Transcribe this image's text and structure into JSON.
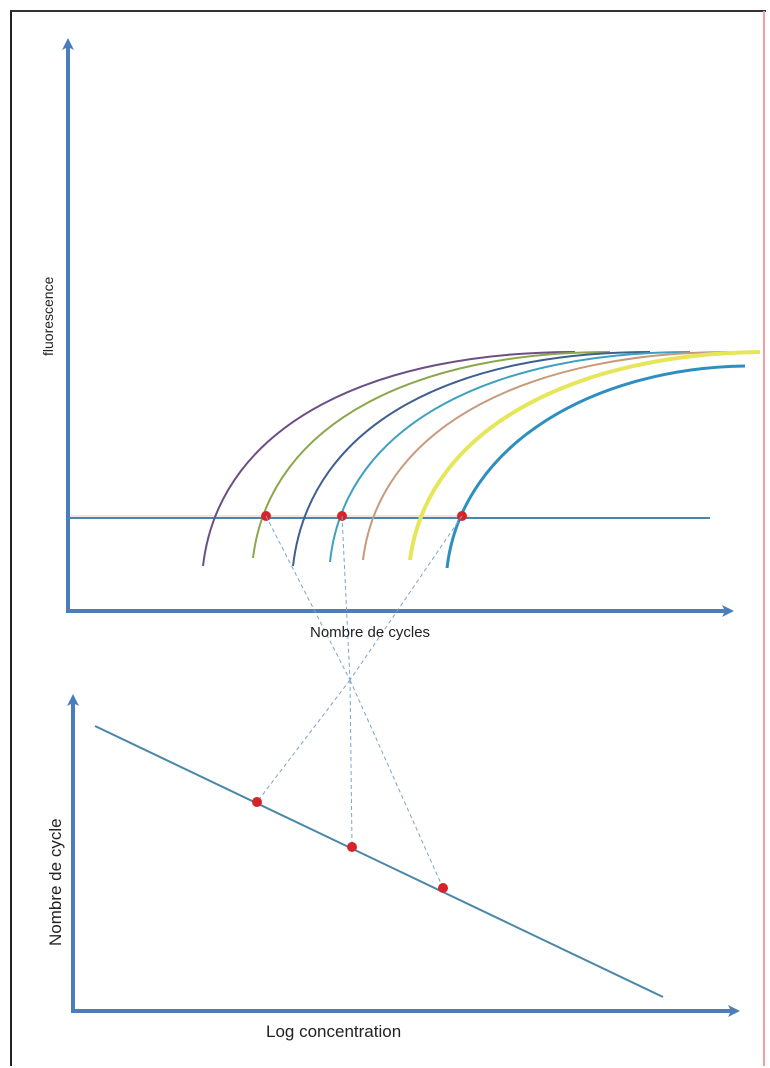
{
  "colors": {
    "axis": "#4a7ebb",
    "threshold": "#4a86a8",
    "threshold_top": "#e8a0a0",
    "point": "#d6252a",
    "guide": "#7aa6c9",
    "frame_top": "#333333",
    "frame_right": "#f0a0a0",
    "frame_left": "#222222",
    "curves": [
      "#6b4f86",
      "#8aa84a",
      "#3f5f8f",
      "#3fa0c0",
      "#c89a7a",
      "#e6e65a",
      "#2d8fbf"
    ]
  },
  "upper_chart": {
    "xlabel": "Nombre de cycles",
    "ylabel": "fluorescence",
    "curve_count": 7,
    "threshold_line": true
  },
  "lower_chart": {
    "xlabel": "Log concentration",
    "ylabel": "Nombre de cycle",
    "regression_line": true
  },
  "chart_data": [
    {
      "type": "line",
      "title": "",
      "xlabel": "Nombre de cycles",
      "ylabel": "fluorescence",
      "series": [
        {
          "values": "sigmoid amplification curve 1"
        },
        {
          "values": "sigmoid amplification curve 2"
        },
        {
          "values": "sigmoid amplification curve 3"
        },
        {
          "values": "sigmoid amplification curve 4"
        },
        {
          "values": "sigmoid amplification curve 5"
        },
        {
          "values": "sigmoid amplification curve 6"
        },
        {
          "values": "sigmoid amplification curve 7"
        }
      ],
      "threshold_crossings": 3
    },
    {
      "type": "scatter",
      "title": "",
      "xlabel": "Log concentration",
      "ylabel": "Nombre de cycle",
      "points": 3,
      "trend": "decreasing linear"
    }
  ]
}
